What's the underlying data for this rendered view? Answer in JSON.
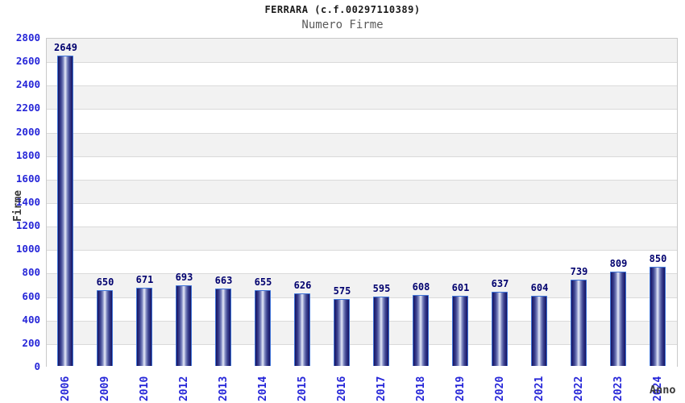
{
  "header": {
    "title": "FERRARA (c.f.00297110389)",
    "subtitle": "Numero Firme"
  },
  "axes": {
    "y_title": "Firme",
    "x_title": "Anno"
  },
  "chart_data": {
    "type": "bar",
    "title": "FERRARA (c.f.00297110389)",
    "subtitle": "Numero Firme",
    "xlabel": "Anno",
    "ylabel": "Firme",
    "categories": [
      "2006",
      "2009",
      "2010",
      "2012",
      "2013",
      "2014",
      "2015",
      "2016",
      "2017",
      "2018",
      "2019",
      "2020",
      "2021",
      "2022",
      "2023",
      "2024"
    ],
    "values": [
      2649,
      650,
      671,
      693,
      663,
      655,
      626,
      575,
      595,
      608,
      601,
      637,
      604,
      739,
      809,
      850
    ],
    "ylim": [
      0,
      2800
    ],
    "ytick_step": 200,
    "grid": "horizontal-bands",
    "legend_position": "none",
    "colors": {
      "tick_label": "#2626d8",
      "value_label": "#00006e",
      "bar_dark": "#15155e",
      "bar_mid": "#3d4490",
      "bar_light": "#e6e9f6",
      "bar_outline": "#3f74d8",
      "band_gray": "#f2f2f2",
      "band_white": "#ffffff",
      "grid_line": "#dadada",
      "plot_border": "#c9c9c9",
      "title_color": "#1a1a1a",
      "subtitle_color": "#5a5a5a",
      "axis_title_color": "#3a3a3a"
    }
  }
}
